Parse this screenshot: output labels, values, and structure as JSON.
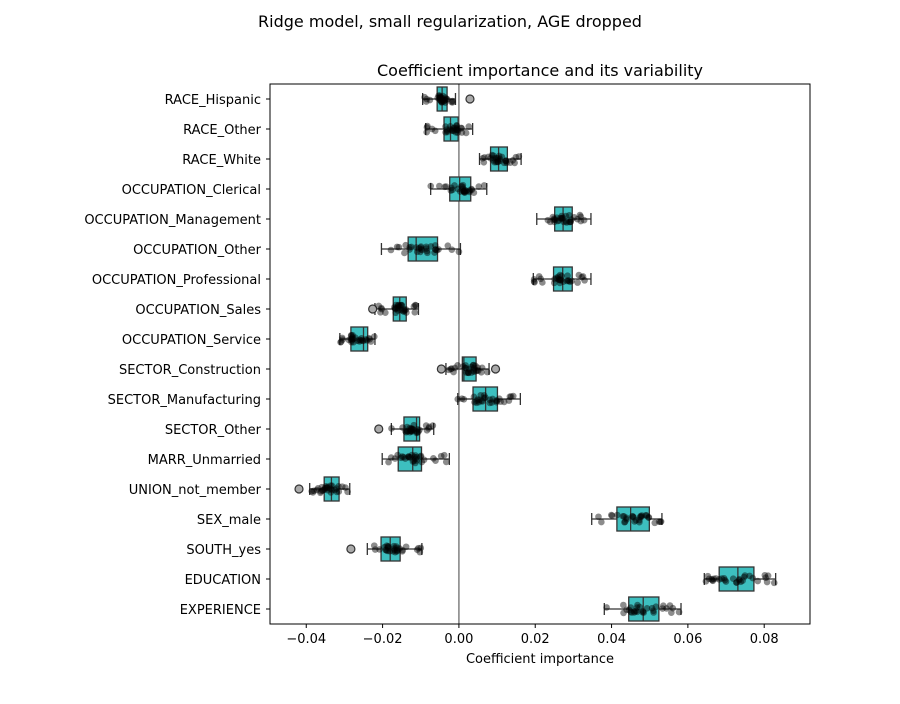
{
  "chart_data": {
    "type": "box",
    "suptitle": "Ridge model, small regularization, AGE dropped",
    "title": "Coefficient importance and its variability",
    "xlabel": "Coefficient importance",
    "ylabel": "",
    "xlim": [
      -0.0495,
      0.092
    ],
    "xticks": [
      -0.04,
      -0.02,
      0.0,
      0.02,
      0.04,
      0.06,
      0.08
    ],
    "xtick_labels": [
      "−0.04",
      "−0.02",
      "0.00",
      "0.02",
      "0.04",
      "0.06",
      "0.08"
    ],
    "reference_line": 0,
    "grid": false,
    "colors": {
      "box": "#3dbfbf",
      "points": "#000000",
      "zero_line": "#808080"
    },
    "categories": [
      "RACE_Hispanic",
      "RACE_Other",
      "RACE_White",
      "OCCUPATION_Clerical",
      "OCCUPATION_Management",
      "OCCUPATION_Other",
      "OCCUPATION_Professional",
      "OCCUPATION_Sales",
      "OCCUPATION_Service",
      "SECTOR_Construction",
      "SECTOR_Manufacturing",
      "SECTOR_Other",
      "MARR_Unmarried",
      "UNION_not_member",
      "SEX_male",
      "SOUTH_yes",
      "EDUCATION",
      "EXPERIENCE"
    ],
    "boxes": [
      {
        "q1": -0.0057,
        "median": -0.0044,
        "q3": -0.0031,
        "whislo": -0.0095,
        "whishi": -0.0009,
        "outliers": [
          0.0029
        ]
      },
      {
        "q1": -0.0039,
        "median": -0.0022,
        "q3": -0.0002,
        "whislo": -0.0087,
        "whishi": 0.0036,
        "outliers": []
      },
      {
        "q1": 0.0083,
        "median": 0.0104,
        "q3": 0.0127,
        "whislo": 0.0054,
        "whishi": 0.0163,
        "outliers": []
      },
      {
        "q1": -0.0024,
        "median": 0.0002,
        "q3": 0.0031,
        "whislo": -0.0074,
        "whishi": 0.0073,
        "outliers": []
      },
      {
        "q1": 0.0251,
        "median": 0.0273,
        "q3": 0.0297,
        "whislo": 0.0204,
        "whishi": 0.0346,
        "outliers": []
      },
      {
        "q1": -0.0133,
        "median": -0.0112,
        "q3": -0.0056,
        "whislo": -0.0203,
        "whishi": 0.0004,
        "outliers": []
      },
      {
        "q1": 0.0248,
        "median": 0.0272,
        "q3": 0.0297,
        "whislo": 0.0195,
        "whishi": 0.0346,
        "outliers": []
      },
      {
        "q1": -0.0172,
        "median": -0.0155,
        "q3": -0.0138,
        "whislo": -0.022,
        "whishi": -0.0106,
        "outliers": [
          -0.0226
        ]
      },
      {
        "q1": -0.0283,
        "median": -0.025,
        "q3": -0.0239,
        "whislo": -0.0312,
        "whishi": -0.022,
        "outliers": []
      },
      {
        "q1": 0.0009,
        "median": 0.0013,
        "q3": 0.0045,
        "whislo": -0.0034,
        "whishi": 0.0079,
        "outliers": [
          -0.0046,
          0.0096
        ]
      },
      {
        "q1": 0.0037,
        "median": 0.007,
        "q3": 0.0101,
        "whislo": -0.0003,
        "whishi": 0.0161,
        "outliers": []
      },
      {
        "q1": -0.0144,
        "median": -0.0111,
        "q3": -0.0103,
        "whislo": -0.0177,
        "whishi": -0.0066,
        "outliers": [
          -0.021
        ]
      },
      {
        "q1": -0.0159,
        "median": -0.0121,
        "q3": -0.0098,
        "whislo": -0.0201,
        "whishi": -0.0025,
        "outliers": []
      },
      {
        "q1": -0.0353,
        "median": -0.0334,
        "q3": -0.0314,
        "whislo": -0.0391,
        "whishi": -0.0286,
        "outliers": [
          -0.0419
        ]
      },
      {
        "q1": 0.0414,
        "median": 0.045,
        "q3": 0.0499,
        "whislo": 0.0348,
        "whishi": 0.0532,
        "outliers": []
      },
      {
        "q1": -0.0204,
        "median": -0.018,
        "q3": -0.0154,
        "whislo": -0.024,
        "whishi": -0.0097,
        "outliers": [
          -0.0283
        ]
      },
      {
        "q1": 0.0682,
        "median": 0.0731,
        "q3": 0.0773,
        "whislo": 0.0643,
        "whishi": 0.083,
        "outliers": []
      },
      {
        "q1": 0.0445,
        "median": 0.0483,
        "q3": 0.0524,
        "whislo": 0.0381,
        "whishi": 0.0582,
        "outliers": []
      }
    ]
  }
}
